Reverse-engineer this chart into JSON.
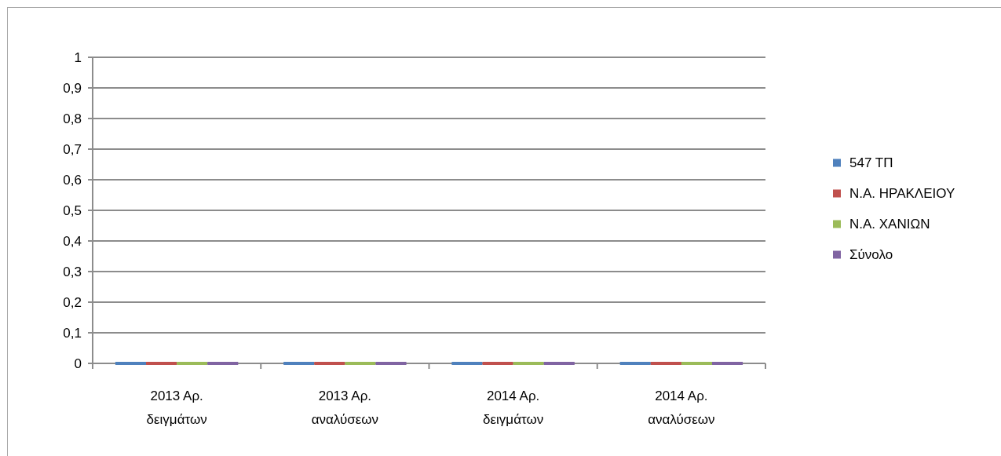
{
  "chart_data": {
    "type": "bar",
    "categories": [
      "2013 Αρ. δειγμάτων",
      "2013 Αρ. αναλύσεων",
      "2014 Αρ. δειγμάτων",
      "2014 Αρ. αναλύσεων"
    ],
    "series": [
      {
        "name": "547 ΤΠ",
        "color": "#4f81bd",
        "values": [
          0,
          0,
          0,
          0
        ]
      },
      {
        "name": "Ν.Α. ΗΡΑΚΛΕΙΟΥ",
        "color": "#c0504d",
        "values": [
          0,
          0,
          0,
          0
        ]
      },
      {
        "name": "Ν.Α. ΧΑΝΙΩΝ",
        "color": "#9bbb59",
        "values": [
          0,
          0,
          0,
          0
        ]
      },
      {
        "name": "Σύνολο",
        "color": "#8064a2",
        "values": [
          0,
          0,
          0,
          0
        ]
      }
    ],
    "ylim": [
      0,
      1
    ],
    "yticks": [
      0,
      {
        "value": 0.1,
        "label": "0,1"
      },
      {
        "value": 0.2,
        "label": "0,2"
      },
      {
        "value": 0.3,
        "label": "0,3"
      },
      {
        "value": 0.4,
        "label": "0,4"
      },
      {
        "value": 0.5,
        "label": "0,5"
      },
      {
        "value": 0.6,
        "label": "0,6"
      },
      {
        "value": 0.7,
        "label": "0,7"
      },
      {
        "value": 0.8,
        "label": "0,8"
      },
      {
        "value": 0.9,
        "label": "0,9"
      },
      1
    ],
    "grid": "y",
    "legend": "right"
  }
}
